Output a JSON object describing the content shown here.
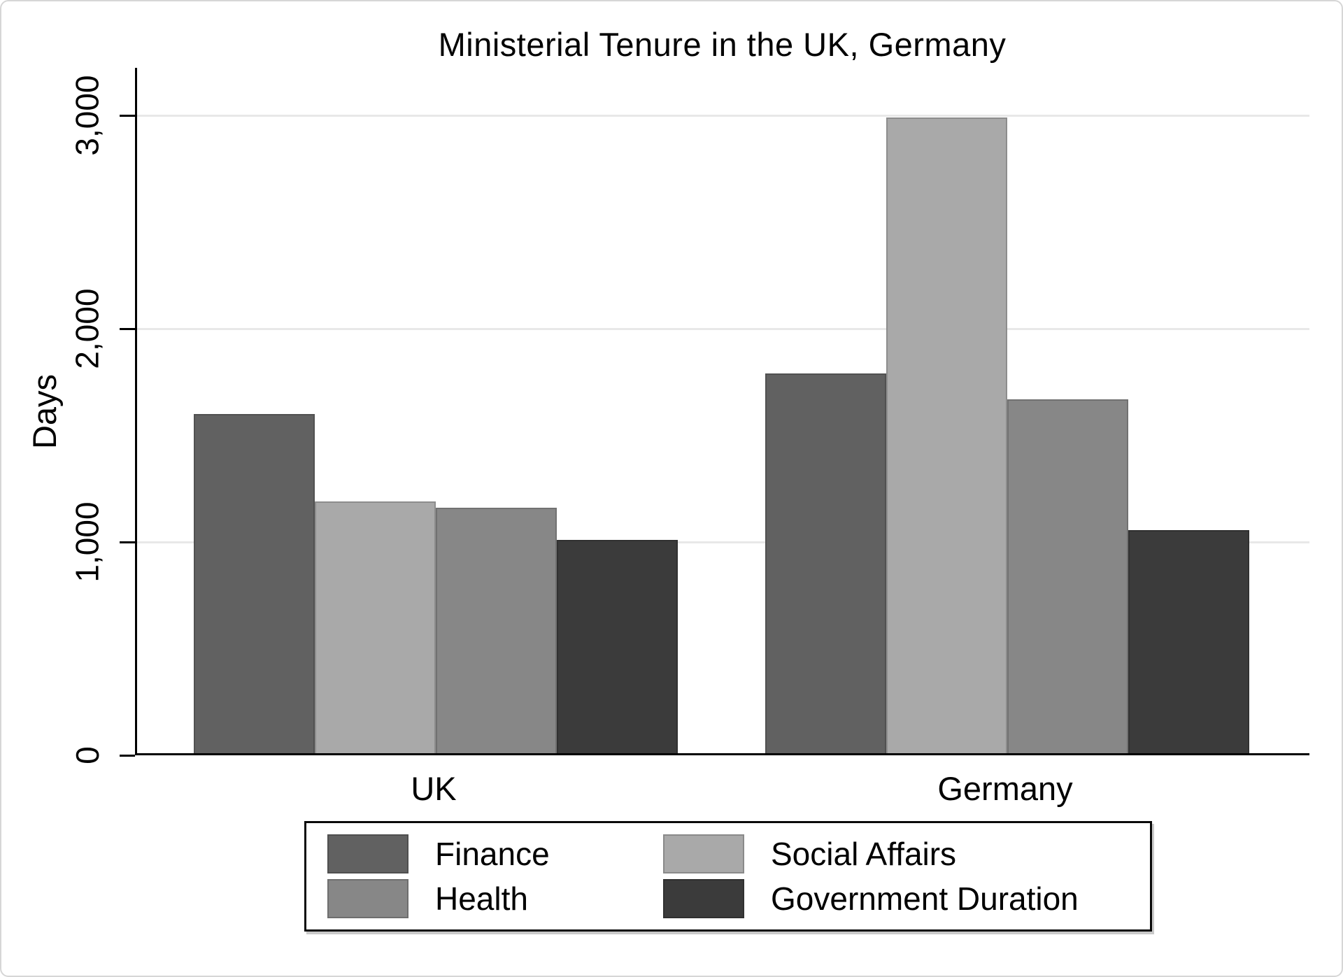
{
  "title": "Ministerial Tenure in the UK, Germany",
  "chart_data": {
    "type": "bar",
    "title": "Ministerial Tenure in the UK, Germany",
    "ylabel": "Days",
    "xlabel": "",
    "categories": [
      "UK",
      "Germany"
    ],
    "series": [
      {
        "name": "Finance",
        "color": "#616161",
        "values": [
          1590,
          1780
        ]
      },
      {
        "name": "Social Affairs",
        "color": "#a9a9a9",
        "values": [
          1180,
          2980
        ]
      },
      {
        "name": "Health",
        "color": "#878787",
        "values": [
          1150,
          1660
        ]
      },
      {
        "name": "Government Duration",
        "color": "#3b3b3b",
        "values": [
          1000,
          1045
        ]
      }
    ],
    "yticks": {
      "values": [
        0,
        1000,
        2000,
        3000
      ],
      "labels": [
        "0",
        "1,000",
        "2,000",
        "3,000"
      ]
    },
    "ylim": [
      0,
      3220
    ],
    "grid": true,
    "legend_position": "bottom"
  },
  "colors": {
    "gridline": "#e8e8e8",
    "axis": "#000000",
    "text": "#000000",
    "figure_border": "#d6d6d6"
  }
}
